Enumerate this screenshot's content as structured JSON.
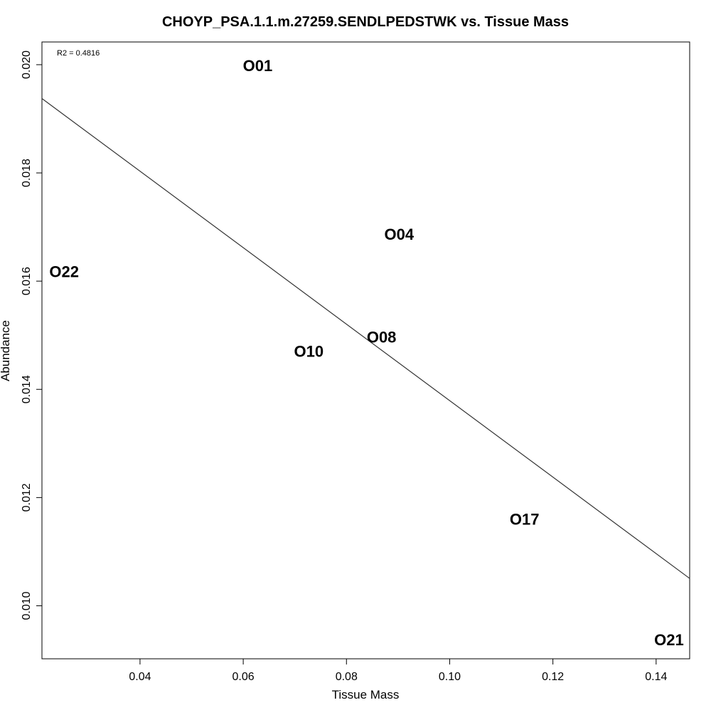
{
  "chart_data": {
    "type": "scatter",
    "title": "CHOYP_PSA.1.1.m.27259.SENDLPEDSTWK vs. Tissue Mass",
    "xlabel": "Tissue Mass",
    "ylabel": "Abundance",
    "xlim": [
      0.021,
      0.1465
    ],
    "ylim": [
      0.00902,
      0.02042
    ],
    "xticks": [
      0.04,
      0.06,
      0.08,
      0.1,
      0.12,
      0.14
    ],
    "xtick_labels": [
      "0.04",
      "0.06",
      "0.08",
      "0.10",
      "0.12",
      "0.14"
    ],
    "yticks": [
      0.01,
      0.012,
      0.014,
      0.016,
      0.018,
      0.02
    ],
    "ytick_labels": [
      "0.010",
      "0.012",
      "0.014",
      "0.016",
      "0.018",
      "0.020"
    ],
    "annotation": "R2 = 0.4816",
    "points": [
      {
        "label": "O01",
        "x": 0.0628,
        "y": 0.01998
      },
      {
        "label": "O04",
        "x": 0.0902,
        "y": 0.01686
      },
      {
        "label": "O22",
        "x": 0.0253,
        "y": 0.01617
      },
      {
        "label": "O08",
        "x": 0.0868,
        "y": 0.01496
      },
      {
        "label": "O10",
        "x": 0.0727,
        "y": 0.0147
      },
      {
        "label": "O17",
        "x": 0.1145,
        "y": 0.0116
      },
      {
        "label": "O21",
        "x": 0.1425,
        "y": 0.00937
      }
    ],
    "fit_line": {
      "x": [
        0.021,
        0.1465
      ],
      "y": [
        0.019375,
        0.010505
      ]
    },
    "grid": false,
    "legend": "none"
  }
}
